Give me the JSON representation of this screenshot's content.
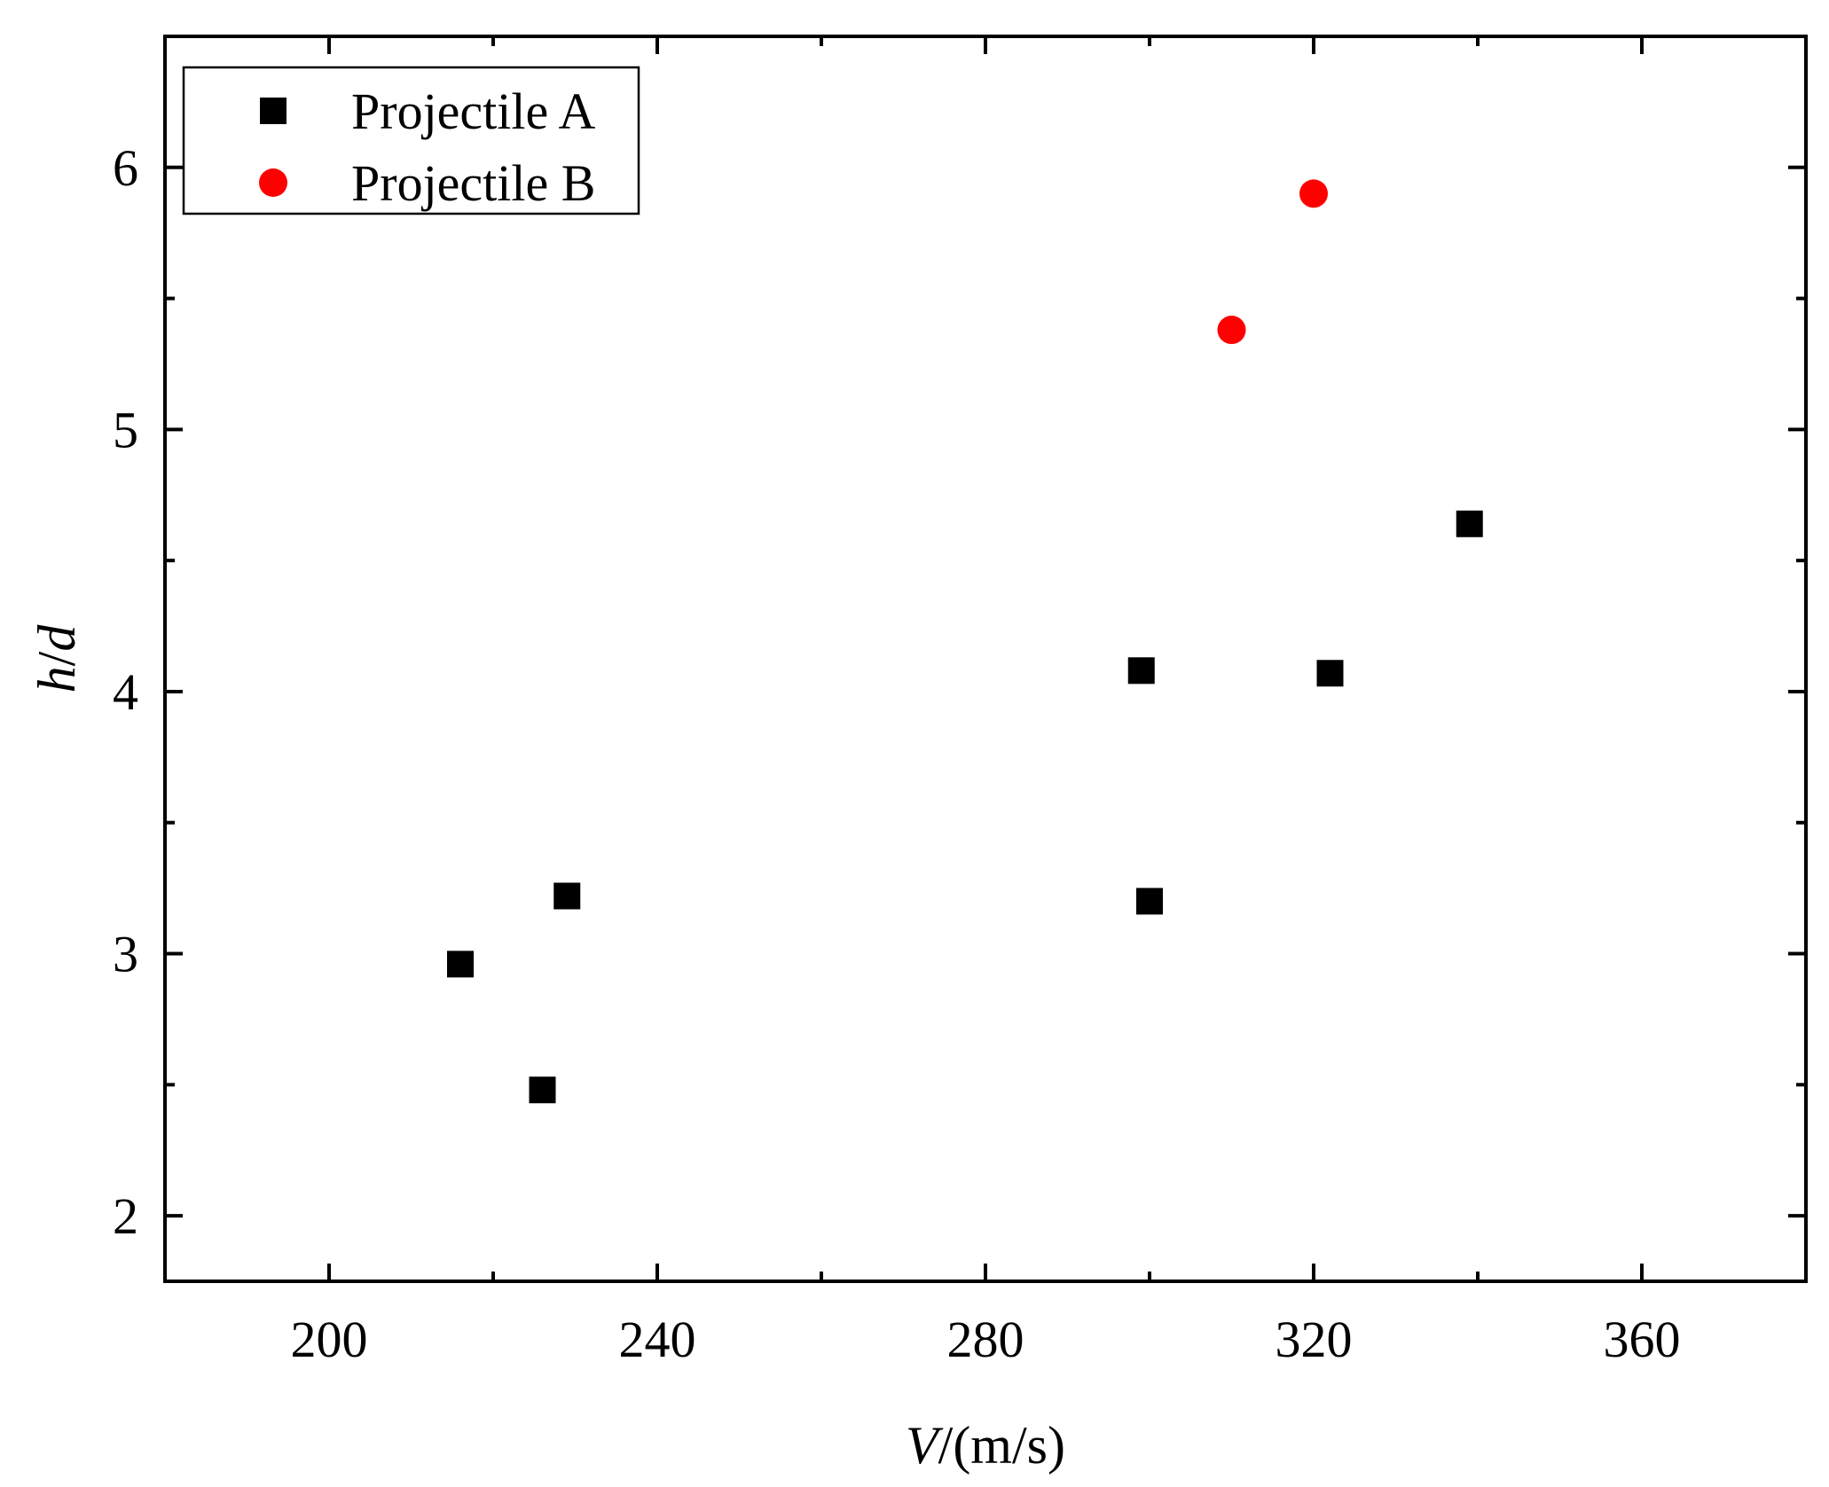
{
  "chart_data": {
    "type": "scatter",
    "title": "",
    "xlabel": {
      "var": "V",
      "unit": "/(m/s)"
    },
    "ylabel": {
      "var1": "h",
      "sep": "/",
      "var2": "d"
    },
    "xlim": [
      180,
      380
    ],
    "ylim": [
      1.75,
      6.5
    ],
    "x_ticks": [
      200,
      240,
      280,
      320,
      360
    ],
    "x_tick_labels": [
      "200",
      "240",
      "280",
      "320",
      "360"
    ],
    "x_minor_step": 20,
    "y_ticks": [
      2,
      3,
      4,
      5,
      6
    ],
    "y_tick_labels": [
      "2",
      "3",
      "4",
      "5",
      "6"
    ],
    "y_minor_step": 0.5,
    "grid": false,
    "legend_position": "top-left",
    "series": [
      {
        "name": "Projectile A",
        "marker": "square",
        "color": "#000000",
        "points": [
          {
            "x": 216,
            "y": 2.96
          },
          {
            "x": 226,
            "y": 2.48
          },
          {
            "x": 229,
            "y": 3.22
          },
          {
            "x": 299,
            "y": 4.08
          },
          {
            "x": 300,
            "y": 3.2
          },
          {
            "x": 322,
            "y": 4.07
          },
          {
            "x": 339,
            "y": 4.64
          }
        ]
      },
      {
        "name": "Projectile B",
        "marker": "circle",
        "color": "#ff0000",
        "points": [
          {
            "x": 310,
            "y": 5.38
          },
          {
            "x": 320,
            "y": 5.9
          }
        ]
      }
    ]
  }
}
